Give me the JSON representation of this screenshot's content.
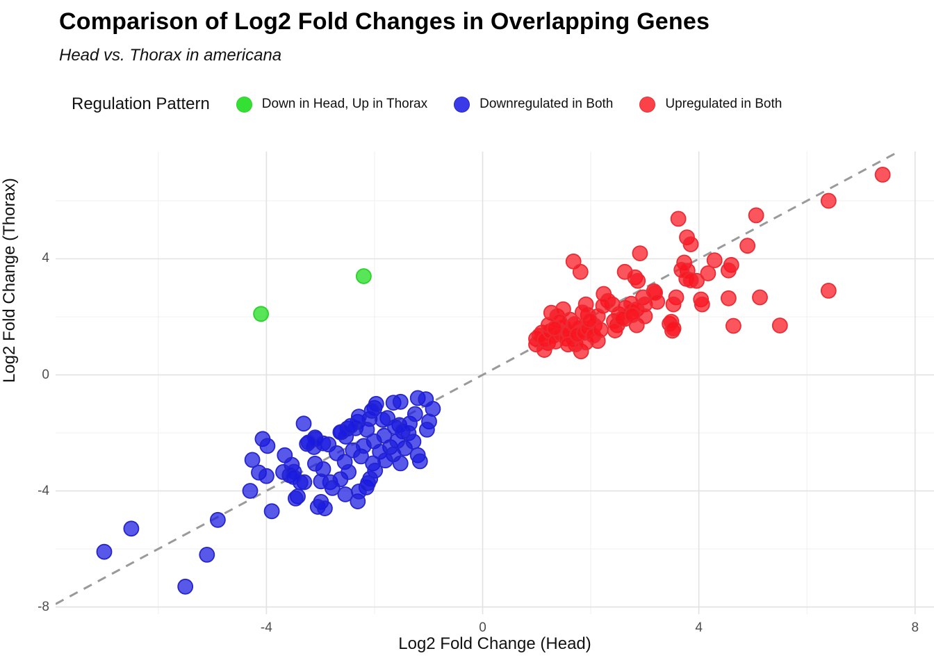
{
  "header": {
    "title": "Comparison of Log2 Fold Changes in Overlapping Genes",
    "subtitle": "Head vs. Thorax in americana"
  },
  "legend": {
    "title": "Regulation Pattern",
    "position": "top",
    "items": [
      {
        "label": "Down in Head, Up in Thorax",
        "color": "#35e035",
        "stroke": "#2bd12b"
      },
      {
        "label": "Downregulated in Both",
        "color": "#3a3ae8",
        "stroke": "#2525cc"
      },
      {
        "label": "Upregulated in Both",
        "color": "#fa4248",
        "stroke": "#ea2c34"
      }
    ]
  },
  "chart_data": {
    "type": "scatter",
    "title": "Comparison of Log2 Fold Changes in Overlapping Genes",
    "subtitle": "Head vs. Thorax in americana",
    "xlabel": "Log2 Fold Change (Head)",
    "ylabel": "Log2 Fold Change (Thorax)",
    "xlim": [
      -7.9,
      8.35
    ],
    "ylim": [
      -8.25,
      7.7
    ],
    "x_major_ticks": [
      -4,
      0,
      4,
      8
    ],
    "y_major_ticks": [
      -8,
      -4,
      0,
      4
    ],
    "x_minor_ticks": [
      -6,
      -2,
      2,
      6
    ],
    "y_minor_ticks": [
      -6,
      -2,
      2,
      6
    ],
    "grid": "major+minor",
    "grid_major_color": "#e2e2e2",
    "grid_minor_color": "#f0f0f0",
    "identity_line": {
      "equation": "y = x",
      "style": "dashed",
      "color": "#9a9a9a",
      "width": 3
    },
    "marker": {
      "radius": 10.5,
      "fill_opacity": 0.72,
      "stroke_width": 1.8
    },
    "series": [
      {
        "name": "Down in Head, Up in Thorax",
        "color": "#17dc17",
        "stroke": "#2bd12b",
        "points": [
          [
            -4.1,
            2.1
          ],
          [
            -2.2,
            3.4
          ]
        ]
      },
      {
        "name": "Downregulated in Both",
        "color": "#1919e1",
        "stroke": "#2525cc",
        "points": [
          [
            -7.0,
            -6.1
          ],
          [
            -6.5,
            -5.3
          ],
          [
            -5.5,
            -7.3
          ],
          [
            -5.1,
            -6.2
          ],
          [
            -4.9,
            -5.0
          ],
          [
            -3.9,
            -4.7
          ],
          [
            -4.3,
            -4.0
          ],
          [
            -3.31,
            -1.68
          ],
          [
            -4.07,
            -2.21
          ],
          [
            -3.98,
            -2.45
          ],
          [
            -3.1,
            -2.16
          ],
          [
            -3.25,
            -2.38
          ],
          [
            -2.85,
            -2.4
          ],
          [
            -2.61,
            -1.97
          ],
          [
            -2.5,
            -1.85
          ],
          [
            -4.26,
            -2.93
          ],
          [
            -4.14,
            -3.37
          ],
          [
            -4.0,
            -3.49
          ],
          [
            -3.66,
            -2.77
          ],
          [
            -3.53,
            -3.1
          ],
          [
            -3.69,
            -3.35
          ],
          [
            -3.57,
            -3.46
          ],
          [
            -3.49,
            -3.34
          ],
          [
            -3.3,
            -3.7
          ],
          [
            -3.1,
            -3.06
          ],
          [
            -2.95,
            -3.25
          ],
          [
            -2.82,
            -3.7
          ],
          [
            -2.78,
            -3.9
          ],
          [
            -3.42,
            -4.19
          ],
          [
            -2.99,
            -4.38
          ],
          [
            -3.12,
            -2.49
          ],
          [
            -2.53,
            -2.13
          ],
          [
            -2.35,
            -1.84
          ],
          [
            -3.46,
            -4.26
          ],
          [
            -3.05,
            -4.55
          ],
          [
            -2.92,
            -4.6
          ],
          [
            -2.54,
            -4.12
          ],
          [
            -2.31,
            -4.36
          ],
          [
            -2.99,
            -3.67
          ],
          [
            -3.37,
            -3.71
          ],
          [
            -2.63,
            -3.6
          ],
          [
            -2.15,
            -3.88
          ],
          [
            -3.5,
            -3.52
          ],
          [
            -2.0,
            -1.14
          ],
          [
            -2.31,
            -1.62
          ],
          [
            -2.09,
            -1.52
          ],
          [
            -2.63,
            -1.98
          ],
          [
            -3.09,
            -2.21
          ],
          [
            -3.22,
            -2.33
          ],
          [
            -2.95,
            -2.36
          ],
          [
            -2.44,
            -1.76
          ],
          [
            -1.97,
            -1.0
          ],
          [
            -1.65,
            -0.96
          ],
          [
            -1.52,
            -0.93
          ],
          [
            -1.2,
            -0.8
          ],
          [
            -1.05,
            -0.84
          ],
          [
            -0.92,
            -1.17
          ],
          [
            -0.99,
            -1.61
          ],
          [
            -1.03,
            -1.89
          ],
          [
            -1.37,
            -2.01
          ],
          [
            -1.54,
            -1.73
          ],
          [
            -1.76,
            -1.49
          ],
          [
            -2.05,
            -1.24
          ],
          [
            -2.29,
            -1.44
          ],
          [
            -2.14,
            -1.89
          ],
          [
            -2.01,
            -2.29
          ],
          [
            -1.71,
            -2.49
          ],
          [
            -1.65,
            -2.74
          ],
          [
            -1.44,
            -2.53
          ],
          [
            -1.2,
            -2.77
          ],
          [
            -1.16,
            -2.98
          ],
          [
            -1.52,
            -3.05
          ],
          [
            -2.03,
            -3.05
          ],
          [
            -1.99,
            -3.3
          ],
          [
            -2.08,
            -3.58
          ],
          [
            -2.12,
            -3.73
          ],
          [
            -2.29,
            -4.02
          ],
          [
            -2.25,
            -2.81
          ],
          [
            -1.85,
            -1.55
          ],
          [
            -1.62,
            -1.8
          ],
          [
            -1.48,
            -1.95
          ],
          [
            -1.82,
            -2.1
          ],
          [
            -2.4,
            -2.6
          ],
          [
            -2.2,
            -2.45
          ],
          [
            -1.9,
            -2.65
          ],
          [
            -1.58,
            -2.28
          ],
          [
            -1.35,
            -1.68
          ],
          [
            -1.28,
            -2.3
          ],
          [
            -2.55,
            -3.0
          ],
          [
            -2.7,
            -2.7
          ],
          [
            -2.48,
            -3.35
          ],
          [
            -1.8,
            -2.95
          ],
          [
            -1.25,
            -1.35
          ]
        ]
      },
      {
        "name": "Upregulated in Both",
        "color": "#fa141e",
        "stroke": "#ea2c34",
        "points": [
          [
            7.4,
            6.9
          ],
          [
            6.4,
            6.0
          ],
          [
            6.4,
            2.9
          ],
          [
            5.5,
            1.7
          ],
          [
            5.06,
            5.5
          ],
          [
            4.9,
            4.45
          ],
          [
            5.13,
            2.67
          ],
          [
            4.64,
            1.69
          ],
          [
            3.62,
            5.38
          ],
          [
            3.78,
            4.74
          ],
          [
            3.85,
            4.5
          ],
          [
            2.91,
            4.19
          ],
          [
            4.29,
            3.95
          ],
          [
            4.6,
            3.79
          ],
          [
            4.55,
            3.6
          ],
          [
            4.17,
            3.5
          ],
          [
            3.73,
            3.87
          ],
          [
            3.79,
            3.59
          ],
          [
            3.96,
            3.24
          ],
          [
            4.04,
            2.6
          ],
          [
            4.06,
            2.43
          ],
          [
            4.55,
            2.64
          ],
          [
            1.68,
            3.91
          ],
          [
            1.81,
            3.55
          ],
          [
            2.63,
            3.55
          ],
          [
            2.82,
            3.36
          ],
          [
            3.68,
            3.62
          ],
          [
            3.77,
            3.31
          ],
          [
            3.85,
            3.26
          ],
          [
            3.17,
            2.88
          ],
          [
            3.46,
            1.76
          ],
          [
            3.51,
            1.52
          ],
          [
            3.58,
            2.67
          ],
          [
            3.53,
            2.43
          ],
          [
            2.24,
            2.79
          ],
          [
            2.4,
            2.43
          ],
          [
            2.87,
            3.24
          ],
          [
            2.97,
            2.67
          ],
          [
            3.0,
            2.43
          ],
          [
            3.19,
            2.83
          ],
          [
            3.23,
            2.52
          ],
          [
            2.76,
            2.17
          ],
          [
            2.63,
            1.93
          ],
          [
            2.49,
            1.71
          ],
          [
            2.85,
            1.71
          ],
          [
            3.49,
            1.83
          ],
          [
            3.53,
            1.6
          ],
          [
            2.32,
            2.55
          ],
          [
            2.23,
            2.38
          ],
          [
            2.13,
            2.02
          ],
          [
            2.07,
            1.7
          ],
          [
            1.95,
            2.06
          ],
          [
            1.91,
            2.43
          ],
          [
            2.43,
            1.85
          ],
          [
            2.52,
            2.09
          ],
          [
            2.64,
            2.31
          ],
          [
            2.75,
            2.45
          ],
          [
            2.85,
            2.26
          ],
          [
            3.0,
            2.02
          ],
          [
            2.45,
            1.53
          ],
          [
            2.58,
            1.94
          ],
          [
            2.77,
            2.06
          ],
          [
            0.99,
            1.24
          ],
          [
            1.1,
            1.46
          ],
          [
            1.21,
            1.1
          ],
          [
            1.3,
            1.34
          ],
          [
            1.27,
            2.14
          ],
          [
            1.38,
            2.02
          ],
          [
            1.49,
            2.26
          ],
          [
            1.62,
            1.9
          ],
          [
            1.68,
            1.24
          ],
          [
            1.79,
            1.61
          ],
          [
            0.99,
            1.05
          ],
          [
            1.14,
            0.86
          ],
          [
            1.82,
            0.81
          ],
          [
            1.72,
            1.05
          ],
          [
            1.91,
            1.12
          ],
          [
            2.13,
            1.17
          ],
          [
            1.05,
            1.35
          ],
          [
            1.15,
            1.2
          ],
          [
            1.25,
            1.5
          ],
          [
            1.35,
            1.15
          ],
          [
            1.45,
            1.4
          ],
          [
            1.55,
            1.25
          ],
          [
            1.5,
            1.65
          ],
          [
            1.6,
            1.45
          ],
          [
            1.7,
            1.75
          ],
          [
            1.42,
            1.85
          ],
          [
            1.22,
            1.72
          ],
          [
            1.33,
            1.6
          ],
          [
            1.58,
            1.05
          ],
          [
            1.75,
            1.38
          ],
          [
            1.88,
            1.45
          ],
          [
            1.95,
            1.6
          ],
          [
            2.05,
            1.35
          ],
          [
            1.85,
            2.15
          ],
          [
            1.98,
            1.88
          ],
          [
            2.18,
            1.55
          ]
        ]
      }
    ]
  }
}
